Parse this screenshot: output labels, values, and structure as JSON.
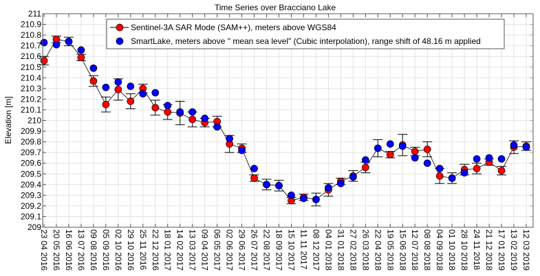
{
  "chart_data": {
    "type": "scatter",
    "title": "Time Series over Bracciano Lake",
    "xlabel": "",
    "ylabel": "Elevation [m]",
    "ylim": [
      209,
      211
    ],
    "yticks": [
      "209",
      "209.1",
      "209.2",
      "209.3",
      "209.4",
      "209.5",
      "209.6",
      "209.7",
      "209.8",
      "209.9",
      "210",
      "210.1",
      "210.2",
      "210.3",
      "210.4",
      "210.5",
      "210.6",
      "210.7",
      "210.8",
      "210.9",
      "211"
    ],
    "grid": true,
    "legend_position": "top",
    "categories": [
      "23 04 2016",
      "20 05 2016",
      "16 06 2016",
      "13 07 2016",
      "09 08 2016",
      "05 09 2016",
      "02 10 2016",
      "29 10 2016",
      "25 11 2016",
      "22 12 2016",
      "18 01 2017",
      "14 02 2017",
      "13 03 2017",
      "09 04 2017",
      "06 05 2017",
      "02 06 2017",
      "29 06 2017",
      "26 07 2017",
      "22 08 2017",
      "18 09 2017",
      "15 10 2017",
      "11 11 2017",
      "08 12 2017",
      "04 01 2018",
      "31 01 2018",
      "27 02 2018",
      "26 03 2018",
      "22 04 2018",
      "19 05 2018",
      "15 06 2018",
      "12 07 2018",
      "08 08 2018",
      "04 09 2018",
      "01 10 2018",
      "28 10 2018",
      "24 11 2018",
      "21 12 2018",
      "17 01 2019",
      "13 02 2019",
      "12 03 2019"
    ],
    "series": [
      {
        "name": "Sentinel-3A SAR Mode (SAM++), meters above WGS84",
        "color": "#ff0000",
        "line": true,
        "values": [
          210.56,
          210.76,
          210.74,
          210.59,
          210.37,
          210.15,
          210.29,
          210.18,
          210.3,
          210.12,
          210.08,
          210.07,
          210.01,
          209.98,
          209.99,
          209.78,
          209.74,
          209.46,
          209.4,
          209.39,
          209.25,
          209.28,
          209.26,
          209.35,
          209.43,
          209.48,
          209.56,
          209.74,
          209.68,
          209.77,
          209.71,
          209.73,
          209.48,
          209.46,
          209.54,
          209.55,
          209.61,
          209.53,
          209.75,
          209.76
        ],
        "error": [
          0.04,
          0.03,
          0.04,
          0.03,
          0.05,
          0.07,
          0.1,
          0.07,
          0.04,
          0.07,
          0.07,
          0.11,
          0.07,
          0.04,
          0.05,
          0.08,
          0.04,
          0.03,
          0.05,
          0.05,
          0.03,
          0.03,
          0.06,
          0.06,
          0.03,
          0.05,
          0.05,
          0.08,
          0.03,
          0.1,
          0.04,
          0.07,
          0.07,
          0.05,
          0.05,
          0.05,
          0.03,
          0.04,
          0.06,
          0.04
        ]
      },
      {
        "name": "SmartLake, meters above \" mean sea level\" (Cubic interpolation), range shift of 48.16 m applied",
        "color": "#0000ff",
        "line": false,
        "values": [
          210.73,
          210.71,
          210.74,
          210.66,
          210.49,
          210.31,
          210.36,
          210.32,
          210.25,
          210.26,
          210.14,
          210.08,
          210.08,
          210.02,
          209.94,
          209.83,
          209.72,
          209.55,
          209.4,
          209.39,
          209.3,
          209.27,
          209.26,
          209.37,
          209.41,
          209.47,
          209.63,
          209.74,
          209.78,
          209.76,
          209.65,
          209.6,
          209.55,
          209.46,
          209.51,
          209.64,
          209.65,
          209.64,
          209.77,
          209.75
        ]
      }
    ]
  }
}
